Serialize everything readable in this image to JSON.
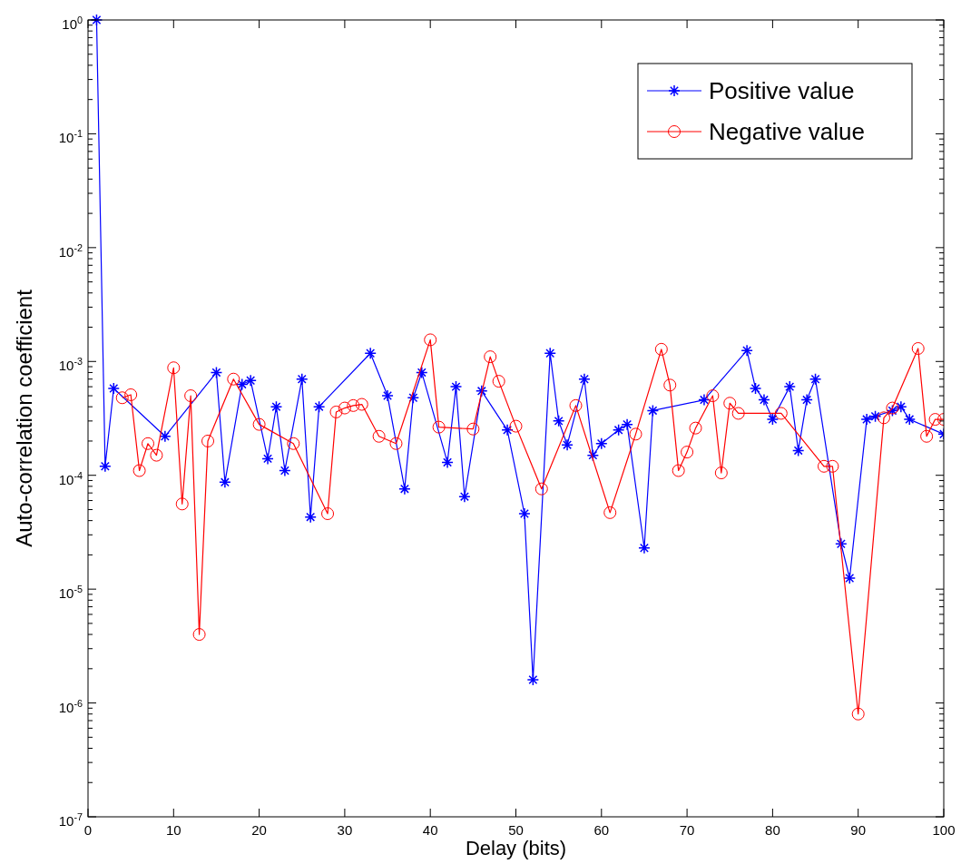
{
  "chart_data": {
    "type": "line",
    "xlabel": "Delay (bits)",
    "ylabel": "Auto-correlation coefficient",
    "log": "y",
    "grid": false,
    "legend": "top right",
    "xlim": [
      0,
      100
    ],
    "xticks": [
      0,
      10,
      20,
      30,
      40,
      50,
      60,
      70,
      80,
      90,
      100
    ],
    "ylim": [
      1e-07,
      1
    ],
    "yticks": [
      {
        "value": 1e-07,
        "label": "10$^{-7}$"
      },
      {
        "value": 1e-06,
        "label": "10$^{-6}$"
      },
      {
        "value": 1e-05,
        "label": "10$^{-5}$"
      },
      {
        "value": 0.0001,
        "label": "10$^{-4}$"
      },
      {
        "value": 0.001,
        "label": "10$^{-3}$"
      },
      {
        "value": 0.01,
        "label": "10$^{-2}$"
      },
      {
        "value": 0.1,
        "label": "10$^{-1}$"
      },
      {
        "value": 1,
        "label": "10$^{0}$"
      }
    ],
    "series": [
      {
        "name": "Positive value",
        "color": "#0000ff",
        "marker": "cross",
        "x": [
          1,
          2,
          3,
          9,
          15,
          16,
          18,
          19,
          21,
          22,
          23,
          25,
          26,
          27,
          33,
          35,
          37,
          38,
          39,
          42,
          43,
          44,
          46,
          49,
          51,
          52,
          54,
          55,
          56,
          58,
          59,
          60,
          62,
          63,
          65,
          66,
          72,
          77,
          78,
          79,
          80,
          82,
          83,
          84,
          85,
          88,
          89,
          91,
          92,
          94,
          95,
          96,
          100
        ],
        "values": [
          1,
          0.00012,
          0.00058,
          0.00022,
          0.0008,
          8.7e-05,
          0.00063,
          0.00068,
          0.00014,
          0.0004,
          0.00011,
          0.0007,
          4.3e-05,
          0.0004,
          0.00118,
          0.0005,
          7.6e-05,
          0.00048,
          0.0008,
          0.00013,
          0.0006,
          6.5e-05,
          0.00055,
          0.00025,
          4.6e-05,
          1.6e-06,
          0.00118,
          0.0003,
          0.000185,
          0.0007,
          0.00015,
          0.00019,
          0.00025,
          0.00028,
          2.3e-05,
          0.00037,
          0.00046,
          0.00125,
          0.00058,
          0.00046,
          0.00031,
          0.0006,
          0.000165,
          0.00046,
          0.0007,
          2.5e-05,
          1.25e-05,
          0.00031,
          0.00033,
          0.00037,
          0.0004,
          0.00031,
          0.00023
        ]
      },
      {
        "name": "Negative value",
        "color": "#ff0000",
        "marker": "circle",
        "x": [
          4,
          5,
          6,
          7,
          8,
          10,
          11,
          12,
          13,
          14,
          17,
          20,
          24,
          28,
          29,
          30,
          31,
          32,
          34,
          36,
          40,
          41,
          45,
          47,
          48,
          50,
          53,
          57,
          61,
          64,
          67,
          68,
          69,
          70,
          71,
          73,
          74,
          75,
          76,
          81,
          86,
          87,
          90,
          93,
          94,
          97,
          98,
          99,
          100
        ],
        "values": [
          0.00048,
          0.00051,
          0.00011,
          0.00019,
          0.00015,
          0.00088,
          5.6e-05,
          0.0005,
          4e-06,
          0.0002,
          0.0007,
          0.00028,
          0.00019,
          4.6e-05,
          0.00036,
          0.00039,
          0.00041,
          0.00042,
          0.00022,
          0.00019,
          0.00155,
          0.000265,
          0.000255,
          0.0011,
          0.00067,
          0.00027,
          7.6e-05,
          0.00041,
          4.7e-05,
          0.00023,
          0.00128,
          0.00062,
          0.00011,
          0.00016,
          0.00026,
          0.0005,
          0.000105,
          0.00043,
          0.00035,
          0.00035,
          0.00012,
          0.00012,
          8e-07,
          0.00032,
          0.00039,
          0.0013,
          0.00022,
          0.00031,
          0.00031
        ]
      }
    ]
  }
}
